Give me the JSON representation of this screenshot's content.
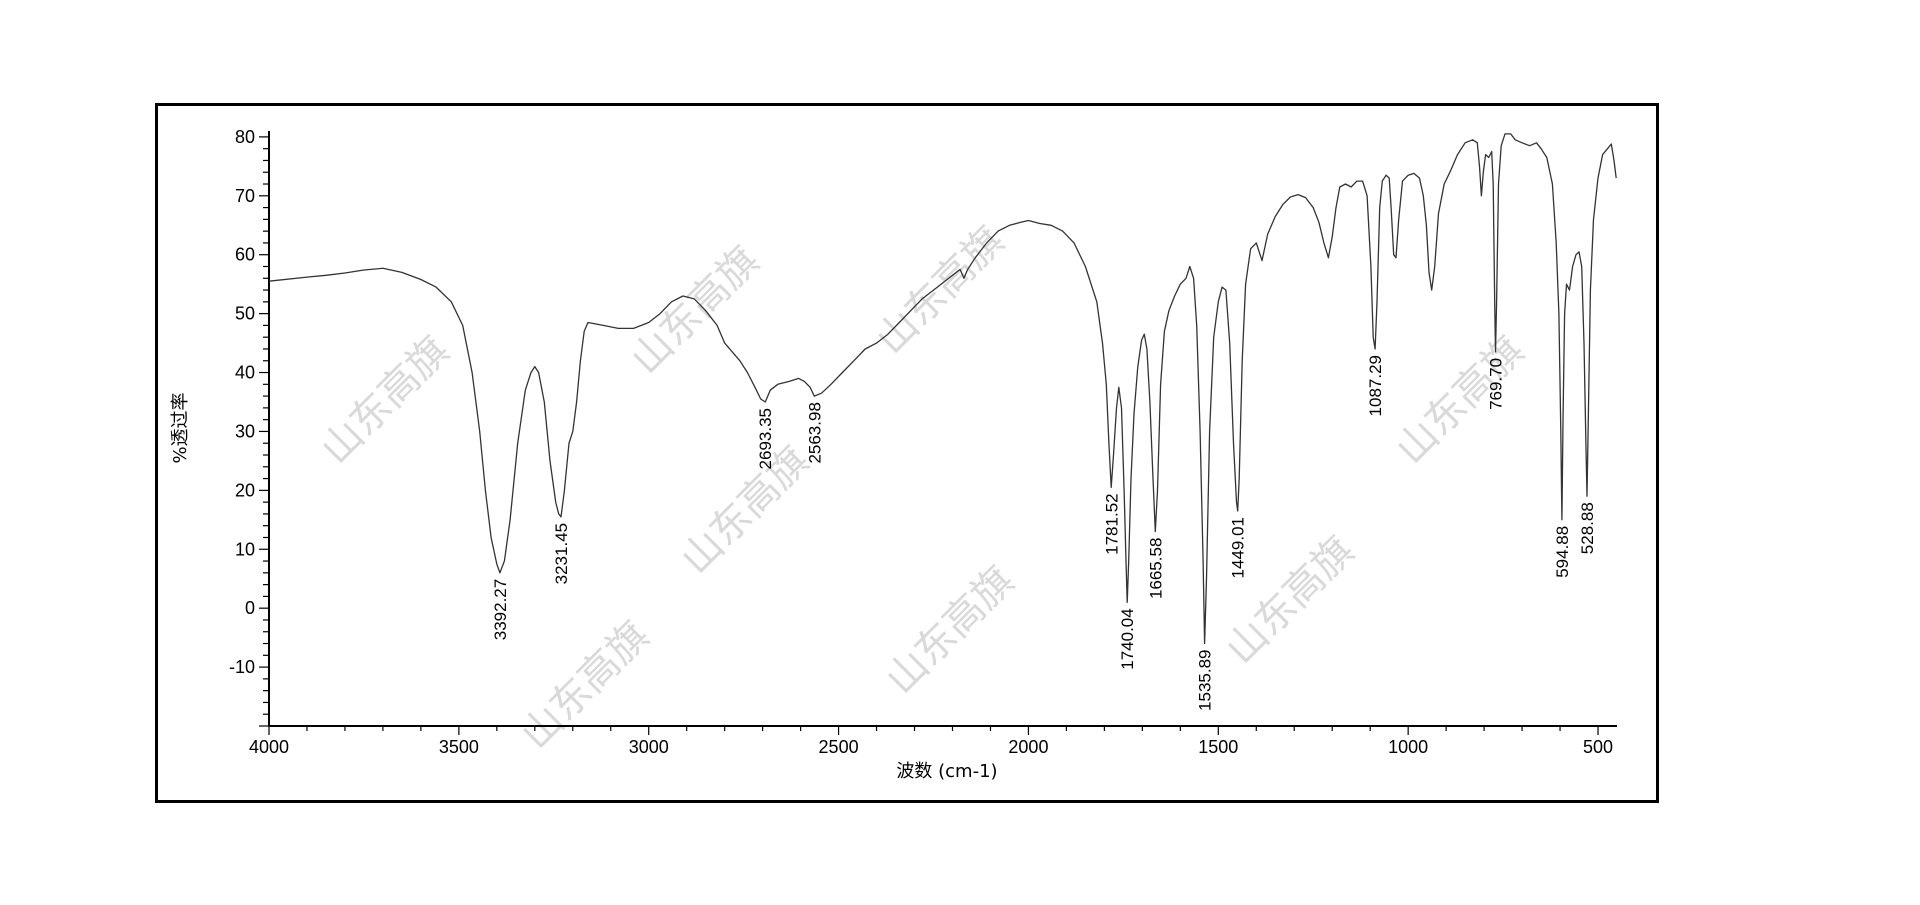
{
  "chart_data": {
    "type": "line",
    "xlabel": "波数 (cm-1)",
    "ylabel": "%透过率",
    "xlim": [
      4000,
      450
    ],
    "ylim": [
      -20,
      81
    ],
    "x_ticks": [
      4000,
      3500,
      3000,
      2500,
      2000,
      1500,
      1000,
      500
    ],
    "x_tick_labels": [
      "4000",
      "3500",
      "3000",
      "2500",
      "2000",
      "1500",
      "1000",
      "500"
    ],
    "y_ticks": [
      -10,
      0,
      10,
      20,
      30,
      40,
      50,
      60,
      70,
      80
    ],
    "y_tick_labels": [
      "-10",
      "0",
      "10",
      "20",
      "30",
      "40",
      "50",
      "60",
      "70",
      "80"
    ],
    "grid": false,
    "legend": "none",
    "line_color": "#333333",
    "watermark_text": "山东高旗",
    "series": [
      {
        "points": [
          [
            4000,
            55.5
          ],
          [
            3900,
            56.2
          ],
          [
            3850,
            56.5
          ],
          [
            3800,
            56.9
          ],
          [
            3750,
            57.4
          ],
          [
            3700,
            57.7
          ],
          [
            3650,
            57.0
          ],
          [
            3600,
            55.8
          ],
          [
            3560,
            54.5
          ],
          [
            3520,
            52.0
          ],
          [
            3490,
            48.0
          ],
          [
            3465,
            40.0
          ],
          [
            3445,
            30.0
          ],
          [
            3430,
            20.0
          ],
          [
            3415,
            12.0
          ],
          [
            3400,
            7.5
          ],
          [
            3392,
            6.0
          ],
          [
            3380,
            8.0
          ],
          [
            3365,
            15.0
          ],
          [
            3345,
            28.0
          ],
          [
            3325,
            37.0
          ],
          [
            3310,
            40.0
          ],
          [
            3300,
            41.0
          ],
          [
            3290,
            40.0
          ],
          [
            3275,
            35.0
          ],
          [
            3260,
            25.0
          ],
          [
            3245,
            18.0
          ],
          [
            3237,
            16.0
          ],
          [
            3231,
            15.5
          ],
          [
            3222,
            20.0
          ],
          [
            3210,
            28.0
          ],
          [
            3200,
            30.0
          ],
          [
            3190,
            35.0
          ],
          [
            3180,
            42.0
          ],
          [
            3170,
            47.0
          ],
          [
            3160,
            48.5
          ],
          [
            3120,
            48.0
          ],
          [
            3080,
            47.5
          ],
          [
            3040,
            47.5
          ],
          [
            3000,
            48.5
          ],
          [
            2970,
            50.0
          ],
          [
            2940,
            52.0
          ],
          [
            2910,
            53.0
          ],
          [
            2880,
            52.5
          ],
          [
            2850,
            50.5
          ],
          [
            2820,
            48.0
          ],
          [
            2800,
            45.0
          ],
          [
            2780,
            43.5
          ],
          [
            2760,
            42.0
          ],
          [
            2740,
            40.0
          ],
          [
            2720,
            37.5
          ],
          [
            2705,
            35.5
          ],
          [
            2693,
            35.0
          ],
          [
            2680,
            37.0
          ],
          [
            2660,
            38.0
          ],
          [
            2630,
            38.5
          ],
          [
            2605,
            39.0
          ],
          [
            2590,
            38.5
          ],
          [
            2575,
            37.5
          ],
          [
            2564,
            36.0
          ],
          [
            2545,
            36.5
          ],
          [
            2520,
            38.0
          ],
          [
            2490,
            40.0
          ],
          [
            2460,
            42.0
          ],
          [
            2430,
            44.0
          ],
          [
            2400,
            45.0
          ],
          [
            2370,
            46.5
          ],
          [
            2340,
            48.5
          ],
          [
            2310,
            50.5
          ],
          [
            2280,
            52.5
          ],
          [
            2250,
            54.0
          ],
          [
            2220,
            55.5
          ],
          [
            2200,
            56.5
          ],
          [
            2180,
            57.5
          ],
          [
            2170,
            56.0
          ],
          [
            2160,
            57.5
          ],
          [
            2140,
            59.5
          ],
          [
            2110,
            62.0
          ],
          [
            2080,
            64.0
          ],
          [
            2050,
            65.0
          ],
          [
            2020,
            65.5
          ],
          [
            2000,
            65.8
          ],
          [
            1970,
            65.3
          ],
          [
            1940,
            65.0
          ],
          [
            1910,
            64.0
          ],
          [
            1880,
            62.0
          ],
          [
            1850,
            58.0
          ],
          [
            1820,
            52.0
          ],
          [
            1805,
            45.0
          ],
          [
            1795,
            38.0
          ],
          [
            1788,
            28.0
          ],
          [
            1782,
            20.5
          ],
          [
            1776,
            26.0
          ],
          [
            1768,
            34.0
          ],
          [
            1762,
            37.5
          ],
          [
            1755,
            34.0
          ],
          [
            1748,
            20.0
          ],
          [
            1743,
            8.0
          ],
          [
            1740,
            1.0
          ],
          [
            1736,
            8.0
          ],
          [
            1730,
            22.0
          ],
          [
            1722,
            33.0
          ],
          [
            1712,
            41.0
          ],
          [
            1702,
            45.5
          ],
          [
            1695,
            46.5
          ],
          [
            1688,
            44.0
          ],
          [
            1680,
            35.0
          ],
          [
            1672,
            22.0
          ],
          [
            1666,
            13.0
          ],
          [
            1660,
            20.0
          ],
          [
            1652,
            38.0
          ],
          [
            1642,
            47.0
          ],
          [
            1630,
            50.5
          ],
          [
            1615,
            53.0
          ],
          [
            1600,
            55.0
          ],
          [
            1585,
            56.0
          ],
          [
            1575,
            58.0
          ],
          [
            1565,
            56.0
          ],
          [
            1557,
            48.0
          ],
          [
            1548,
            30.0
          ],
          [
            1540,
            8.0
          ],
          [
            1536,
            -6.0
          ],
          [
            1531,
            5.0
          ],
          [
            1523,
            30.0
          ],
          [
            1512,
            46.0
          ],
          [
            1500,
            52.0
          ],
          [
            1490,
            54.5
          ],
          [
            1480,
            54.0
          ],
          [
            1470,
            45.0
          ],
          [
            1460,
            28.0
          ],
          [
            1452,
            18.0
          ],
          [
            1449,
            16.5
          ],
          [
            1445,
            22.0
          ],
          [
            1437,
            42.0
          ],
          [
            1428,
            55.0
          ],
          [
            1415,
            61.0
          ],
          [
            1400,
            62.0
          ],
          [
            1385,
            59.0
          ],
          [
            1370,
            63.5
          ],
          [
            1350,
            66.5
          ],
          [
            1330,
            68.5
          ],
          [
            1310,
            69.8
          ],
          [
            1290,
            70.2
          ],
          [
            1270,
            69.7
          ],
          [
            1250,
            68.0
          ],
          [
            1235,
            65.5
          ],
          [
            1222,
            62.0
          ],
          [
            1210,
            59.5
          ],
          [
            1200,
            63.0
          ],
          [
            1190,
            68.0
          ],
          [
            1180,
            71.5
          ],
          [
            1165,
            72.0
          ],
          [
            1150,
            71.5
          ],
          [
            1135,
            72.5
          ],
          [
            1120,
            72.5
          ],
          [
            1108,
            70.0
          ],
          [
            1098,
            58.0
          ],
          [
            1092,
            46.0
          ],
          [
            1087,
            44.0
          ],
          [
            1082,
            52.0
          ],
          [
            1075,
            68.0
          ],
          [
            1068,
            72.5
          ],
          [
            1058,
            73.5
          ],
          [
            1050,
            73.0
          ],
          [
            1045,
            68.0
          ],
          [
            1038,
            60.0
          ],
          [
            1032,
            59.5
          ],
          [
            1025,
            66.0
          ],
          [
            1015,
            72.5
          ],
          [
            1000,
            73.5
          ],
          [
            985,
            73.8
          ],
          [
            970,
            73.0
          ],
          [
            960,
            70.0
          ],
          [
            952,
            65.0
          ],
          [
            945,
            57.0
          ],
          [
            938,
            54.0
          ],
          [
            930,
            58.0
          ],
          [
            920,
            67.0
          ],
          [
            905,
            72.0
          ],
          [
            890,
            74.0
          ],
          [
            870,
            77.0
          ],
          [
            850,
            79.0
          ],
          [
            830,
            79.5
          ],
          [
            818,
            79.0
          ],
          [
            812,
            75.0
          ],
          [
            807,
            70.0
          ],
          [
            802,
            74.0
          ],
          [
            796,
            77.0
          ],
          [
            788,
            76.5
          ],
          [
            780,
            77.5
          ],
          [
            776,
            72.0
          ],
          [
            772,
            52.0
          ],
          [
            770,
            43.5
          ],
          [
            767,
            52.0
          ],
          [
            762,
            72.0
          ],
          [
            755,
            78.5
          ],
          [
            745,
            80.5
          ],
          [
            730,
            80.5
          ],
          [
            718,
            79.5
          ],
          [
            700,
            79.0
          ],
          [
            680,
            78.5
          ],
          [
            662,
            79.0
          ],
          [
            650,
            78.0
          ],
          [
            635,
            76.5
          ],
          [
            620,
            72.0
          ],
          [
            610,
            62.0
          ],
          [
            603,
            50.0
          ],
          [
            598,
            30.0
          ],
          [
            595,
            15.0
          ],
          [
            592,
            33.0
          ],
          [
            588,
            50.0
          ],
          [
            583,
            55.0
          ],
          [
            575,
            54.0
          ],
          [
            567,
            58.0
          ],
          [
            558,
            60.0
          ],
          [
            550,
            60.5
          ],
          [
            543,
            58.0
          ],
          [
            537,
            45.0
          ],
          [
            532,
            28.0
          ],
          [
            529,
            19.0
          ],
          [
            526,
            30.0
          ],
          [
            520,
            54.0
          ],
          [
            512,
            66.0
          ],
          [
            500,
            73.0
          ],
          [
            488,
            77.0
          ],
          [
            475,
            78.0
          ],
          [
            465,
            78.8
          ],
          [
            458,
            76.0
          ],
          [
            452,
            73.0
          ]
        ]
      }
    ],
    "annotations": [
      {
        "text": "3392.27",
        "x": 3392.27,
        "y": 6.0
      },
      {
        "text": "3231.45",
        "x": 3231.45,
        "y": 15.5
      },
      {
        "text": "2693.35",
        "x": 2693.35,
        "y": 35.0
      },
      {
        "text": "2563.98",
        "x": 2563.98,
        "y": 36.0
      },
      {
        "text": "1781.52",
        "x": 1781.52,
        "y": 20.5
      },
      {
        "text": "1740.04",
        "x": 1740.04,
        "y": 1.0
      },
      {
        "text": "1665.58",
        "x": 1665.58,
        "y": 13.0
      },
      {
        "text": "1535.89",
        "x": 1535.89,
        "y": -6.0
      },
      {
        "text": "1449.01",
        "x": 1449.01,
        "y": 16.5
      },
      {
        "text": "1087.29",
        "x": 1087.29,
        "y": 44.0
      },
      {
        "text": "769.70",
        "x": 769.7,
        "y": 43.5
      },
      {
        "text": "594.88",
        "x": 594.88,
        "y": 15.0
      },
      {
        "text": "528.88",
        "x": 528.88,
        "y": 19.0
      }
    ]
  }
}
